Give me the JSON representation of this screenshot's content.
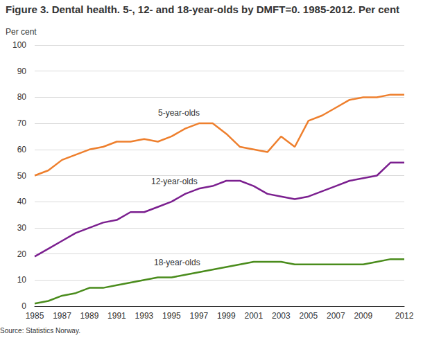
{
  "chart_data": {
    "type": "line",
    "title": "Figure 3. Dental health. 5-, 12- and 18-year-olds by DMFT=0. 1985-2012. Per cent",
    "y_label": "Per cent",
    "source": "Source: Statistics Norway.",
    "categories": [
      "1985",
      null,
      "1987",
      null,
      "1989",
      null,
      "1991",
      null,
      "1993",
      null,
      "1995",
      null,
      "1997",
      null,
      "1999",
      null,
      "2001",
      null,
      "2003",
      null,
      "2005",
      null,
      "2007",
      null,
      "2009",
      null,
      null,
      "2012"
    ],
    "series": [
      {
        "name": "5-year-olds",
        "color": "#ee7f2d",
        "values": [
          50,
          52,
          56,
          58,
          60,
          61,
          63,
          63,
          64,
          63,
          65,
          68,
          70,
          70,
          66,
          61,
          60,
          59,
          65,
          61,
          71,
          73,
          76,
          79,
          80,
          80,
          81,
          81
        ]
      },
      {
        "name": "12-year-olds",
        "color": "#7b1f8f",
        "values": [
          19,
          22,
          25,
          28,
          30,
          32,
          33,
          36,
          36,
          38,
          40,
          43,
          45,
          46,
          48,
          48,
          46,
          43,
          42,
          41,
          42,
          44,
          46,
          48,
          49,
          50,
          55,
          55
        ]
      },
      {
        "name": "18-year-olds",
        "color": "#4a8c1c",
        "values": [
          1,
          2,
          4,
          5,
          7,
          7,
          8,
          9,
          10,
          11,
          11,
          12,
          13,
          14,
          15,
          16,
          17,
          17,
          17,
          16,
          16,
          16,
          16,
          16,
          16,
          17,
          18,
          18
        ]
      }
    ],
    "ylim": [
      0,
      100
    ],
    "yticks": [
      0,
      10,
      20,
      30,
      40,
      50,
      60,
      70,
      80,
      90,
      100
    ],
    "grid": true
  }
}
